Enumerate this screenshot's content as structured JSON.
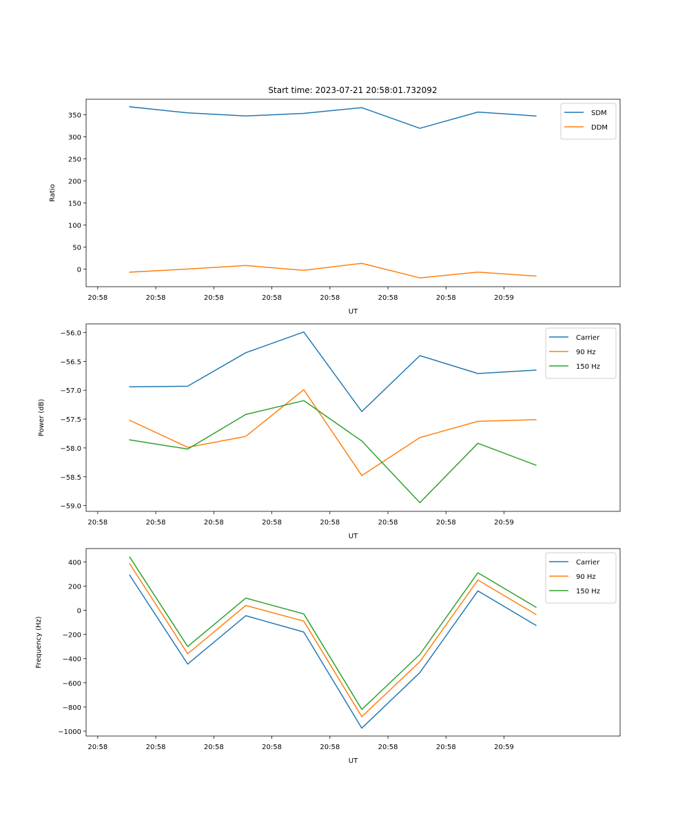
{
  "figure_title": "Start time: 2023-07-21 20:58:01.732092",
  "colors": {
    "c0": "#1f77b4",
    "c1": "#ff7f0e",
    "c2": "#2ca02c"
  },
  "chart_data": [
    {
      "type": "line",
      "title": "Start time: 2023-07-21 20:58:01.732092",
      "xlabel": "UT",
      "ylabel": "Ratio",
      "x_tick_labels": [
        "20:58",
        "20:58",
        "20:58",
        "20:58",
        "20:58",
        "20:58",
        "20:58",
        "20:59"
      ],
      "xlim": [
        -0.2,
        9.0
      ],
      "ylim": [
        -40,
        385
      ],
      "yticks": [
        0,
        50,
        100,
        150,
        200,
        250,
        300,
        350
      ],
      "ytick_labels": [
        "0",
        "50",
        "100",
        "150",
        "200",
        "250",
        "300",
        "350"
      ],
      "legend_position": "top-right",
      "x": [
        0.55,
        1.55,
        2.55,
        3.55,
        4.55,
        5.55,
        6.55,
        7.55
      ],
      "series": [
        {
          "name": "SDM",
          "color": "#1f77b4",
          "values": [
            368,
            354,
            347,
            353,
            366,
            319,
            356,
            347
          ]
        },
        {
          "name": "DDM",
          "color": "#ff7f0e",
          "values": [
            -7,
            0,
            8,
            -3,
            13,
            -20,
            -7,
            -16
          ]
        }
      ]
    },
    {
      "type": "line",
      "title": "",
      "xlabel": "UT",
      "ylabel": "Power (dB)",
      "x_tick_labels": [
        "20:58",
        "20:58",
        "20:58",
        "20:58",
        "20:58",
        "20:58",
        "20:58",
        "20:59"
      ],
      "xlim": [
        -0.2,
        9.0
      ],
      "ylim": [
        -59.1,
        -55.85
      ],
      "yticks": [
        -59.0,
        -58.5,
        -58.0,
        -57.5,
        -57.0,
        -56.5,
        -56.0
      ],
      "ytick_labels": [
        "−59.0",
        "−58.5",
        "−58.0",
        "−57.5",
        "−57.0",
        "−56.5",
        "−56.0"
      ],
      "legend_position": "top-right",
      "x": [
        0.55,
        1.55,
        2.55,
        3.55,
        4.55,
        5.55,
        6.55,
        7.55
      ],
      "series": [
        {
          "name": "Carrier",
          "color": "#1f77b4",
          "values": [
            -56.94,
            -56.93,
            -56.35,
            -55.99,
            -57.37,
            -56.4,
            -56.71,
            -56.65
          ]
        },
        {
          "name": "90 Hz",
          "color": "#ff7f0e",
          "values": [
            -57.52,
            -57.99,
            -57.8,
            -56.99,
            -58.48,
            -57.82,
            -57.54,
            -57.51
          ]
        },
        {
          "name": "150 Hz",
          "color": "#2ca02c",
          "values": [
            -57.86,
            -58.02,
            -57.42,
            -57.18,
            -57.88,
            -58.95,
            -57.92,
            -58.3
          ]
        }
      ]
    },
    {
      "type": "line",
      "title": "",
      "xlabel": "UT",
      "ylabel": "Frequency (Hz)",
      "x_tick_labels": [
        "20:58",
        "20:58",
        "20:58",
        "20:58",
        "20:58",
        "20:58",
        "20:58",
        "20:59"
      ],
      "xlim": [
        -0.2,
        9.0
      ],
      "ylim": [
        -1040,
        510
      ],
      "yticks": [
        -1000,
        -800,
        -600,
        -400,
        -200,
        0,
        200,
        400
      ],
      "ytick_labels": [
        "−1000",
        "−800",
        "−600",
        "−400",
        "−200",
        "0",
        "200",
        "400"
      ],
      "legend_position": "top-right",
      "x": [
        0.55,
        1.55,
        2.55,
        3.55,
        4.55,
        5.55,
        6.55,
        7.55
      ],
      "series": [
        {
          "name": "Carrier",
          "color": "#1f77b4",
          "values": [
            290,
            -445,
            -45,
            -180,
            -975,
            -515,
            160,
            -125
          ]
        },
        {
          "name": "90 Hz",
          "color": "#ff7f0e",
          "values": [
            385,
            -360,
            40,
            -90,
            -880,
            -425,
            250,
            -35
          ]
        },
        {
          "name": "150 Hz",
          "color": "#2ca02c",
          "values": [
            440,
            -300,
            100,
            -30,
            -820,
            -365,
            310,
            25
          ]
        }
      ]
    }
  ]
}
